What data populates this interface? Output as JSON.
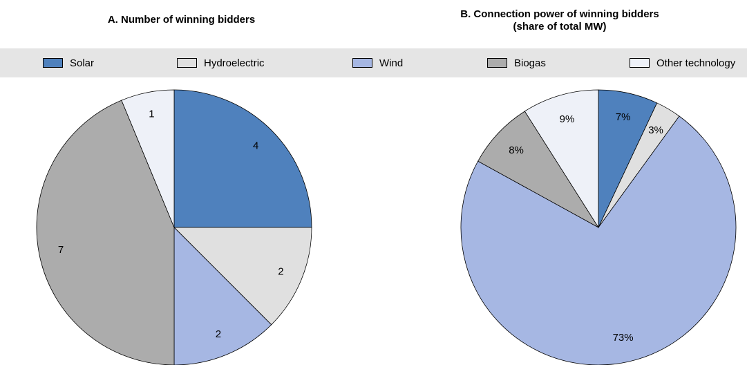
{
  "chart_data": [
    {
      "type": "pie",
      "title": "A. Number of winning bidders",
      "categories": [
        "Solar",
        "Hydroelectric",
        "Wind",
        "Biogas",
        "Other technology"
      ],
      "values": [
        4,
        2,
        2,
        7,
        1
      ],
      "labels": [
        "4",
        "2",
        "2",
        "7",
        "1"
      ]
    },
    {
      "type": "pie",
      "title": "B. Connection power of winning bidders (share of total MW)",
      "title_lines": [
        "B. Connection power of winning bidders",
        "(share of total MW)"
      ],
      "categories": [
        "Solar",
        "Hydroelectric",
        "Wind",
        "Biogas",
        "Other technology"
      ],
      "values": [
        7,
        3,
        73,
        8,
        9
      ],
      "labels": [
        "7%",
        "3%",
        "73%",
        "8%",
        "9%"
      ]
    }
  ],
  "legend": {
    "placement": "top",
    "items": [
      {
        "label": "Solar",
        "color": "#4f81bd"
      },
      {
        "label": "Hydroelectric",
        "color": "#e0e0e0"
      },
      {
        "label": "Wind",
        "color": "#a6b7e3"
      },
      {
        "label": "Biogas",
        "color": "#acacac"
      },
      {
        "label": "Other technology",
        "color": "#eef1f8"
      }
    ]
  }
}
